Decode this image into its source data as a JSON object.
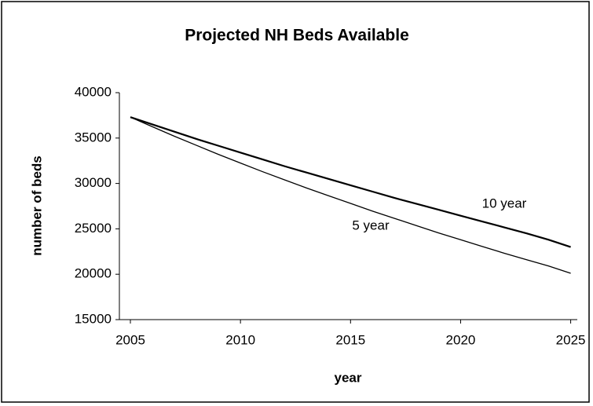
{
  "chart_data": {
    "type": "line",
    "title": "Projected NH Beds Available",
    "x_label": "year",
    "y_label": "number of beds",
    "x": [
      2005,
      2006,
      2007,
      2008,
      2009,
      2010,
      2011,
      2012,
      2013,
      2014,
      2015,
      2016,
      2017,
      2018,
      2019,
      2020,
      2021,
      2022,
      2023,
      2024,
      2025
    ],
    "series": [
      {
        "name": "10 year",
        "color": "#000000",
        "values": [
          37300,
          36500,
          35700,
          34900,
          34150,
          33400,
          32650,
          31900,
          31200,
          30500,
          29800,
          29100,
          28400,
          27750,
          27100,
          26450,
          25800,
          25150,
          24500,
          23800,
          23000
        ]
      },
      {
        "name": "5 year",
        "color": "#000000",
        "values": [
          37300,
          36250,
          35200,
          34200,
          33200,
          32250,
          31300,
          30400,
          29500,
          28650,
          27800,
          26950,
          26150,
          25350,
          24550,
          23800,
          23050,
          22300,
          21600,
          20900,
          20100
        ]
      }
    ],
    "xlim": [
      2004.5,
      2025.3
    ],
    "xticks": [
      2005,
      2010,
      2015,
      2020,
      2025
    ],
    "ylim": [
      15000,
      40000
    ],
    "yticks": [
      15000,
      20000,
      25000,
      30000,
      35000,
      40000
    ],
    "grid": false
  }
}
